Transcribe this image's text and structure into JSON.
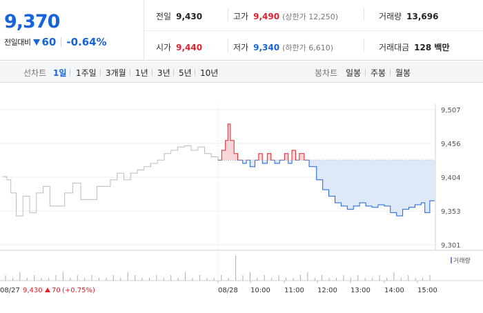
{
  "summary": {
    "current_price": "9,370",
    "change_label": "전일대비",
    "change_value": "60",
    "change_rate": "-0.64%"
  },
  "stats": {
    "prev_close": {
      "label": "전일",
      "value": "9,430"
    },
    "high": {
      "label": "고가",
      "value": "9,490",
      "sub": "(상한가 12,250)"
    },
    "volume": {
      "label": "거래량",
      "value": "13,696"
    },
    "open": {
      "label": "시가",
      "value": "9,440"
    },
    "low": {
      "label": "저가",
      "value": "9,340",
      "sub": "(하한가 6,610)"
    },
    "trade_amount": {
      "label": "거래대금",
      "value": "128 백만"
    }
  },
  "toolbar": {
    "line_label": "선차트",
    "line_periods": [
      "1일",
      "1주일",
      "3개월",
      "1년",
      "3년",
      "5년",
      "10년"
    ],
    "active_period": "1일",
    "candle_label": "봉차트",
    "candle_periods": [
      "일봉",
      "주봉",
      "월봉"
    ]
  },
  "colors": {
    "up": "#e0202a",
    "down": "#1763d9",
    "fill_down": "#dde8f8",
    "fill_up": "#f8d6d8",
    "prev_day_line": "#bbbbbb"
  },
  "chart_data": {
    "type": "line",
    "y_ticks": [
      "9,507",
      "9,456",
      "9,404",
      "9,353",
      "9,301"
    ],
    "ylim": [
      9301,
      9507
    ],
    "reference_price": 9430,
    "x_labels": [
      "08/27",
      "08/28",
      "10:00",
      "11:00",
      "12:00",
      "13:00",
      "14:00",
      "15:00"
    ],
    "prev_day_caption": {
      "date": "08/27",
      "close": "9,430",
      "change": "70",
      "rate": "(+0.75%)"
    },
    "volume_label": "거래량",
    "prev_day_series": {
      "name": "08/27",
      "points": [
        [
          0,
          9405
        ],
        [
          0.3,
          9400
        ],
        [
          0.6,
          9380
        ],
        [
          1,
          9345
        ],
        [
          1.5,
          9375
        ],
        [
          2,
          9350
        ],
        [
          2.5,
          9380
        ],
        [
          3,
          9390
        ],
        [
          3.5,
          9360
        ],
        [
          4,
          9360
        ],
        [
          4.6,
          9380
        ],
        [
          5.2,
          9395
        ],
        [
          5.8,
          9370
        ],
        [
          6.4,
          9370
        ],
        [
          7,
          9390
        ],
        [
          7.5,
          9390
        ],
        [
          8,
          9400
        ],
        [
          8.5,
          9410
        ],
        [
          9,
          9400
        ],
        [
          9.5,
          9410
        ],
        [
          10,
          9415
        ],
        [
          10.5,
          9420
        ],
        [
          11,
          9425
        ],
        [
          11.5,
          9430
        ],
        [
          12,
          9440
        ],
        [
          12.5,
          9445
        ],
        [
          13,
          9450
        ],
        [
          13.5,
          9452
        ],
        [
          14,
          9445
        ],
        [
          14.5,
          9450
        ],
        [
          15,
          9440
        ],
        [
          15.5,
          9435
        ],
        [
          16,
          9430
        ]
      ]
    },
    "today_series": {
      "name": "08/28",
      "points": [
        [
          0,
          9430
        ],
        [
          0.3,
          9445
        ],
        [
          0.6,
          9460
        ],
        [
          0.8,
          9485
        ],
        [
          1,
          9460
        ],
        [
          1.3,
          9440
        ],
        [
          1.6,
          9430
        ],
        [
          2,
          9425
        ],
        [
          2.3,
          9430
        ],
        [
          2.6,
          9420
        ],
        [
          3,
          9430
        ],
        [
          3.3,
          9440
        ],
        [
          3.6,
          9425
        ],
        [
          4,
          9440
        ],
        [
          4.3,
          9430
        ],
        [
          4.6,
          9425
        ],
        [
          5,
          9430
        ],
        [
          5.4,
          9440
        ],
        [
          5.7,
          9425
        ],
        [
          6,
          9445
        ],
        [
          6.3,
          9430
        ],
        [
          6.6,
          9440
        ],
        [
          7,
          9430
        ],
        [
          7.4,
          9420
        ],
        [
          8,
          9400
        ],
        [
          8.5,
          9385
        ],
        [
          9,
          9375
        ],
        [
          9.5,
          9365
        ],
        [
          10,
          9360
        ],
        [
          10.5,
          9355
        ],
        [
          11,
          9360
        ],
        [
          11.5,
          9365
        ],
        [
          12,
          9360
        ],
        [
          12.5,
          9358
        ],
        [
          13,
          9362
        ],
        [
          13.5,
          9360
        ],
        [
          14,
          9350
        ],
        [
          14.5,
          9345
        ],
        [
          15,
          9355
        ],
        [
          15.5,
          9358
        ],
        [
          16,
          9362
        ],
        [
          16.5,
          9365
        ],
        [
          16.8,
          9350
        ],
        [
          17.2,
          9368
        ],
        [
          17.6,
          9368
        ]
      ]
    },
    "volume": [
      2,
      1,
      3,
      1,
      2,
      1,
      1,
      2,
      3,
      1,
      2,
      1,
      2,
      1,
      1,
      2,
      1,
      3,
      2,
      1,
      1,
      2,
      1,
      2,
      1,
      3,
      1,
      2,
      1,
      1,
      2,
      1,
      9,
      2,
      3,
      1,
      2,
      1,
      2,
      1,
      1,
      2,
      3,
      1,
      2,
      1,
      1,
      2,
      1,
      2,
      1,
      1,
      2,
      1,
      3,
      1,
      2,
      1,
      1,
      2
    ]
  }
}
